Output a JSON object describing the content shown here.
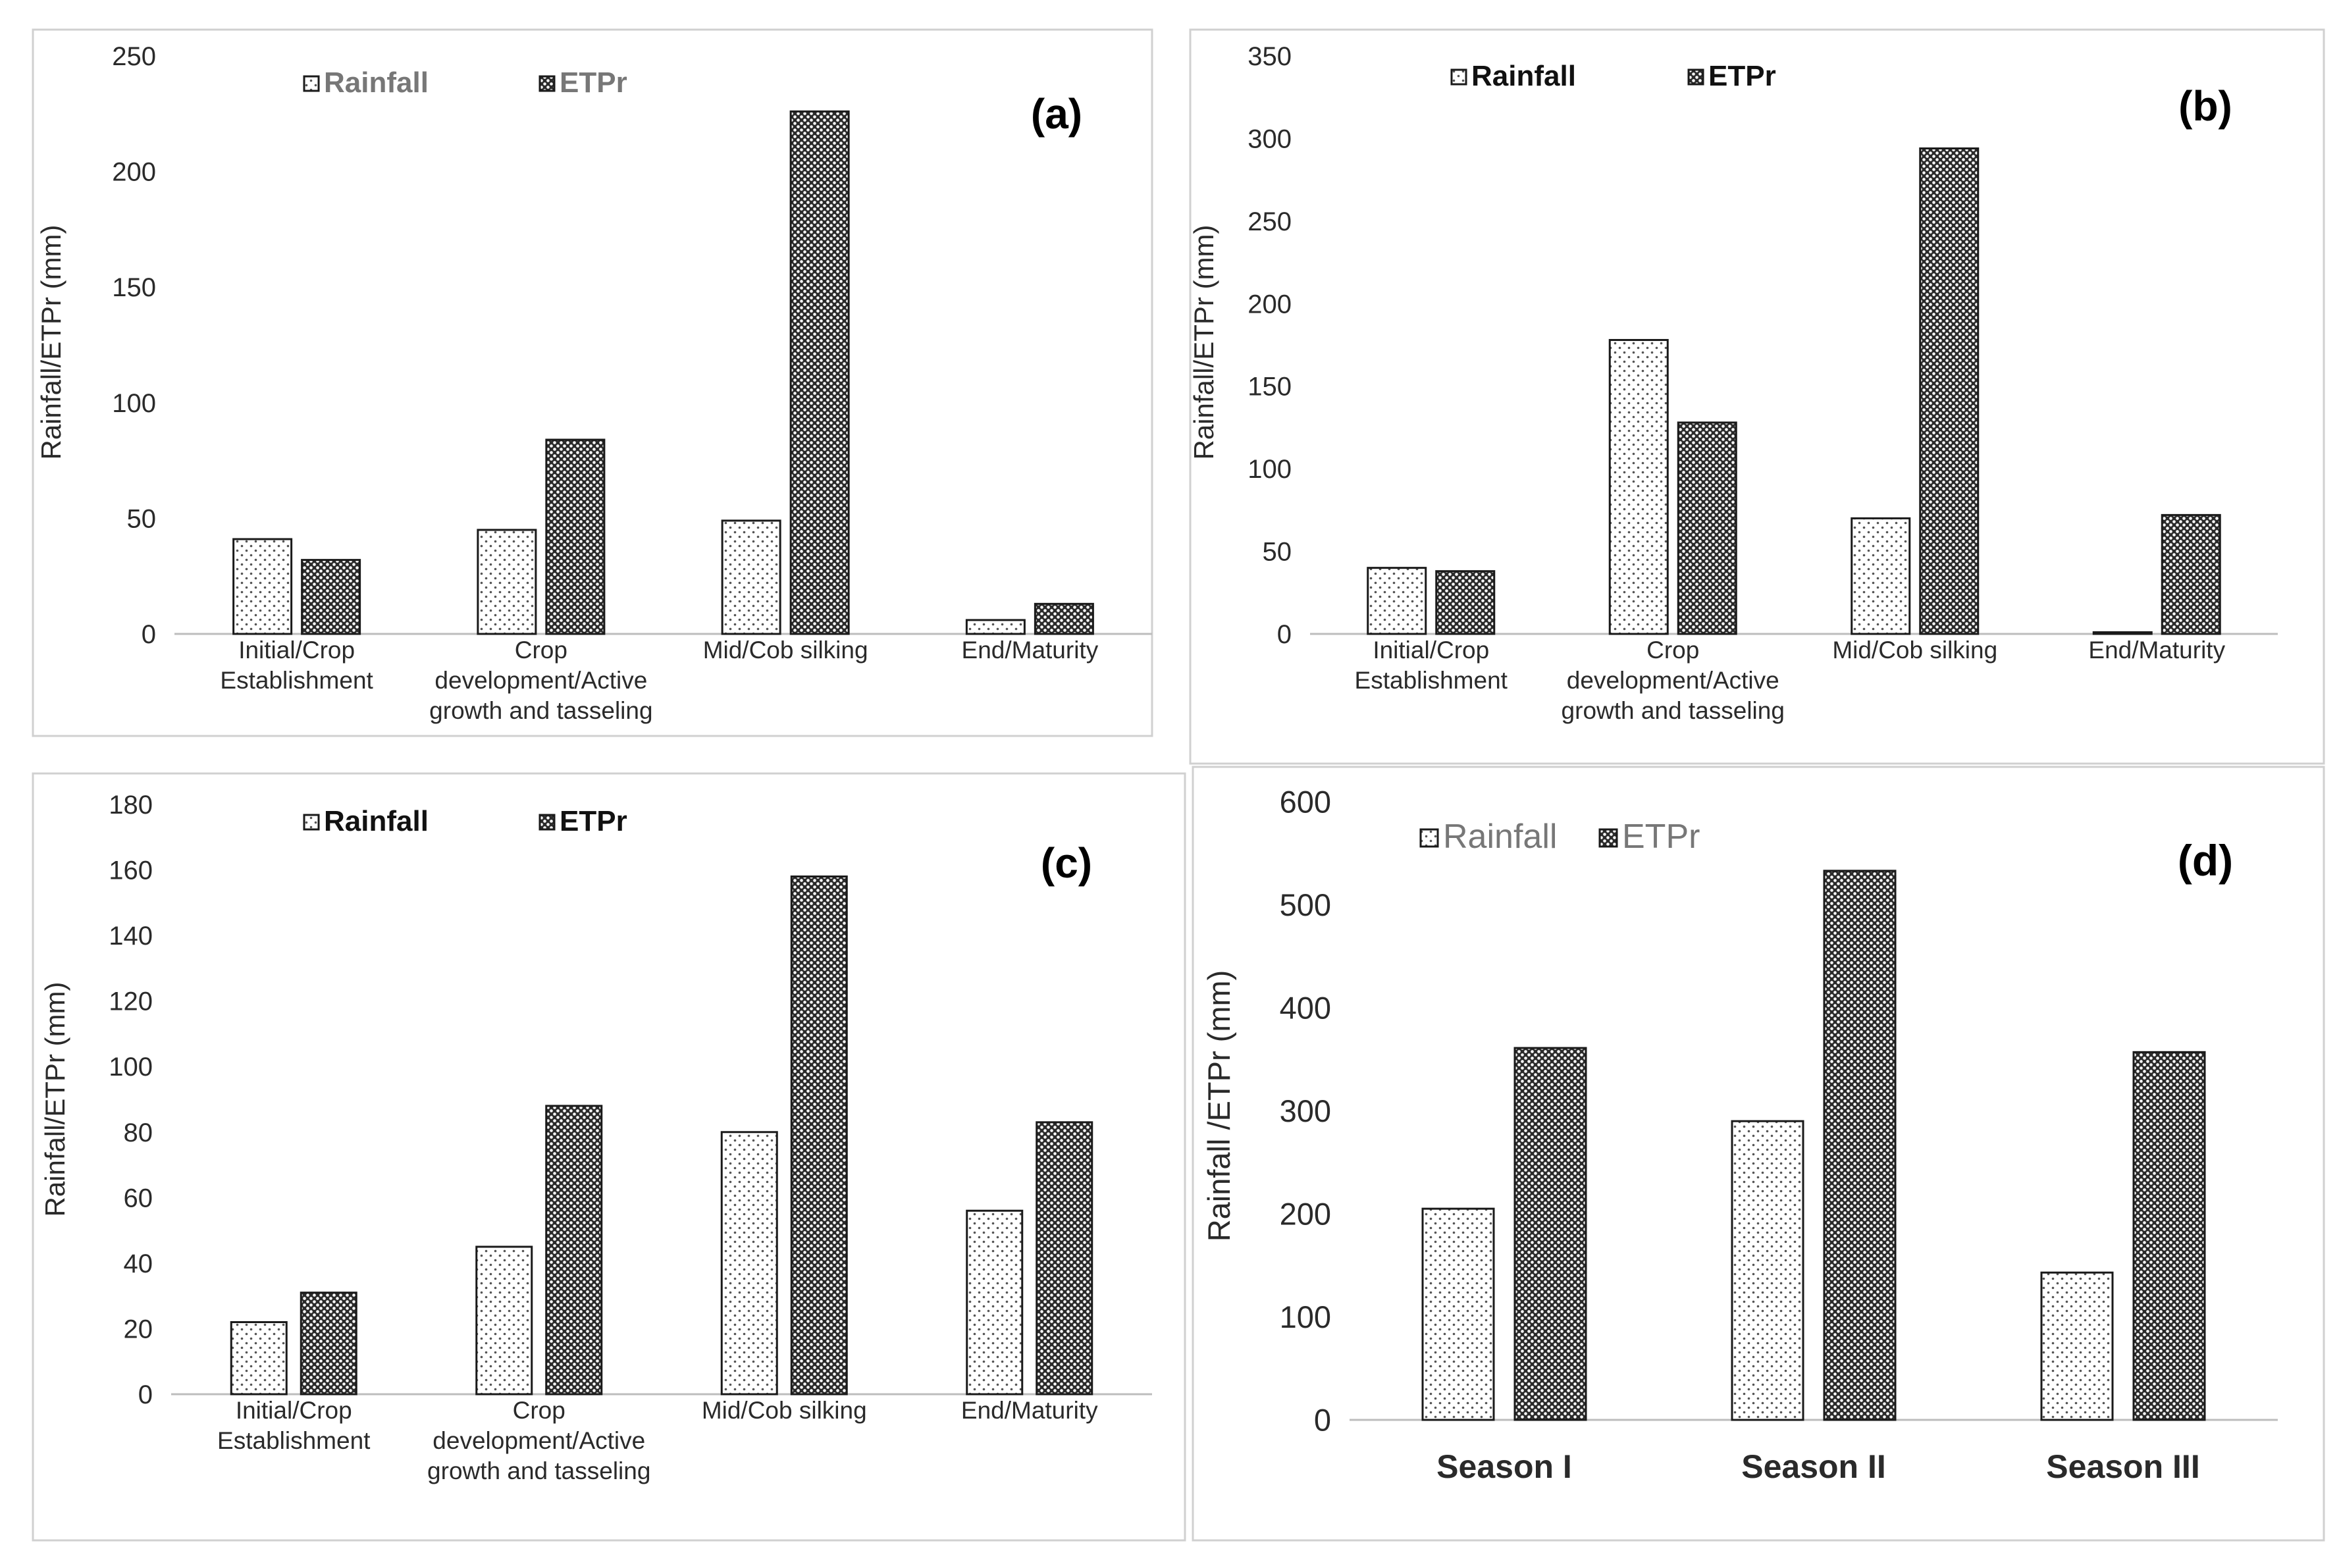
{
  "colors": {
    "bar_stroke": "#1a1a1a",
    "axis_line": "#bdbdbd",
    "text": "#2a2a2a",
    "legend_gray": "#777777"
  },
  "chart_data": [
    {
      "id": "a",
      "type": "bar",
      "panel_label": "(a)",
      "ylabel": "Rainfall/ETPr (mm)",
      "ylim": [
        0,
        250
      ],
      "yticks": [
        0,
        50,
        100,
        150,
        200,
        250
      ],
      "categories": [
        [
          "Initial/Crop",
          "Establishment"
        ],
        [
          "Crop",
          "development/Active",
          "growth and tasseling"
        ],
        [
          "Mid/Cob silking"
        ],
        [
          "End/Maturity"
        ]
      ],
      "series": [
        {
          "name": "Rainfall",
          "pattern": "light-dots",
          "values": [
            41,
            45,
            49,
            6
          ]
        },
        {
          "name": "ETPr",
          "pattern": "dense-dots",
          "values": [
            32,
            84,
            226,
            13
          ]
        }
      ],
      "legend_style": "gray"
    },
    {
      "id": "b",
      "type": "bar",
      "panel_label": "(b)",
      "ylabel": "Rainfall/ETPr (mm)",
      "ylim": [
        0,
        350
      ],
      "yticks": [
        0,
        50,
        100,
        150,
        200,
        250,
        300,
        350
      ],
      "categories": [
        [
          "Initial/Crop",
          "Establishment"
        ],
        [
          "Crop",
          "development/Active",
          "growth and tasseling"
        ],
        [
          "Mid/Cob silking"
        ],
        [
          "End/Maturity"
        ]
      ],
      "series": [
        {
          "name": "Rainfall",
          "pattern": "light-dots",
          "values": [
            40,
            178,
            70,
            1
          ]
        },
        {
          "name": "ETPr",
          "pattern": "dense-dots",
          "values": [
            38,
            128,
            294,
            72
          ]
        }
      ],
      "legend_style": "black"
    },
    {
      "id": "c",
      "type": "bar",
      "panel_label": "(c)",
      "ylabel": "Rainfall/ETPr (mm)",
      "ylim": [
        0,
        180
      ],
      "yticks": [
        0,
        20,
        40,
        60,
        80,
        100,
        120,
        140,
        160,
        180
      ],
      "categories": [
        [
          "Initial/Crop",
          "Establishment"
        ],
        [
          "Crop",
          "development/Active",
          "growth and tasseling"
        ],
        [
          "Mid/Cob silking"
        ],
        [
          "End/Maturity"
        ]
      ],
      "series": [
        {
          "name": "Rainfall",
          "pattern": "light-dots",
          "values": [
            22,
            45,
            80,
            56
          ]
        },
        {
          "name": "ETPr",
          "pattern": "dense-dots",
          "values": [
            31,
            88,
            158,
            83
          ]
        }
      ],
      "legend_style": "black"
    },
    {
      "id": "d",
      "type": "bar",
      "panel_label": "(d)",
      "ylabel": "Rainfall /ETPr (mm)",
      "ylim": [
        0,
        600
      ],
      "yticks": [
        0,
        100,
        200,
        300,
        400,
        500,
        600
      ],
      "categories": [
        [
          "Season I"
        ],
        [
          "Season II"
        ],
        [
          "Season III"
        ]
      ],
      "series": [
        {
          "name": "Rainfall",
          "pattern": "light-dots",
          "values": [
            205,
            290,
            143
          ]
        },
        {
          "name": "ETPr",
          "pattern": "dense-dots",
          "values": [
            361,
            533,
            357
          ]
        }
      ],
      "legend_style": "gray-regular"
    }
  ]
}
